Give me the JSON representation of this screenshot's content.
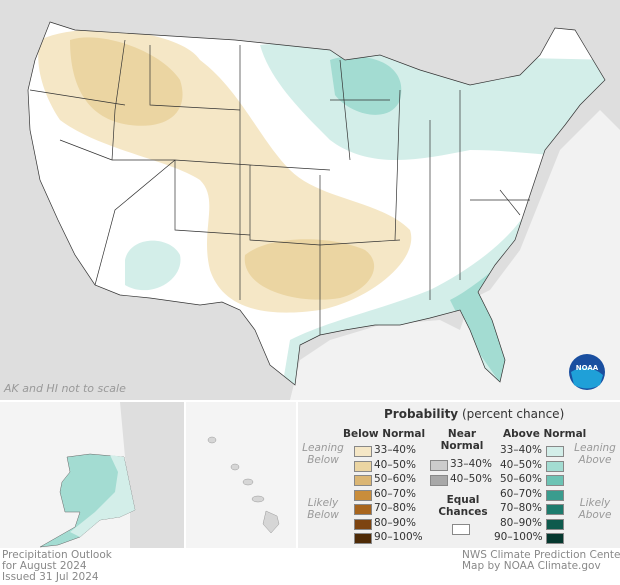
{
  "map": {
    "note": "AK and HI not to scale",
    "logo": "NOAA"
  },
  "legend": {
    "title": "Probability",
    "title_sub": "(percent chance)",
    "below": {
      "header": "Below Normal",
      "leaning": "Leaning Below",
      "likely": "Likely Below",
      "items": [
        {
          "label": "33–40%",
          "color": "#f5e7c6"
        },
        {
          "label": "40–50%",
          "color": "#ebd5a2"
        },
        {
          "label": "50–60%",
          "color": "#dbb674"
        },
        {
          "label": "60–70%",
          "color": "#c98d3b"
        },
        {
          "label": "70–80%",
          "color": "#a8651d"
        },
        {
          "label": "80–90%",
          "color": "#7d4410"
        },
        {
          "label": "90–100%",
          "color": "#4e2a06"
        }
      ]
    },
    "near": {
      "header": "Near Normal",
      "items": [
        {
          "label": "33–40%",
          "color": "#cccccc"
        },
        {
          "label": "40–50%",
          "color": "#a8a8a8"
        }
      ]
    },
    "equal": {
      "label": "Equal Chances",
      "color": "#ffffff"
    },
    "above": {
      "header": "Above Normal",
      "leaning": "Leaning Above",
      "likely": "Likely Above",
      "items": [
        {
          "label": "33–40%",
          "color": "#d3eee9"
        },
        {
          "label": "40–50%",
          "color": "#a3dcd2"
        },
        {
          "label": "50–60%",
          "color": "#6cc3b4"
        },
        {
          "label": "60–70%",
          "color": "#3a9c8e"
        },
        {
          "label": "70–80%",
          "color": "#1d7b6d"
        },
        {
          "label": "80–90%",
          "color": "#0e5a4d"
        },
        {
          "label": "90–100%",
          "color": "#05382f"
        }
      ]
    }
  },
  "footer": {
    "left": [
      "Precipitation Outlook",
      "for August 2024",
      "Issued 31 Jul 2024"
    ],
    "right": [
      "NWS Climate Prediction Center",
      "Map by NOAA Climate.gov"
    ]
  }
}
